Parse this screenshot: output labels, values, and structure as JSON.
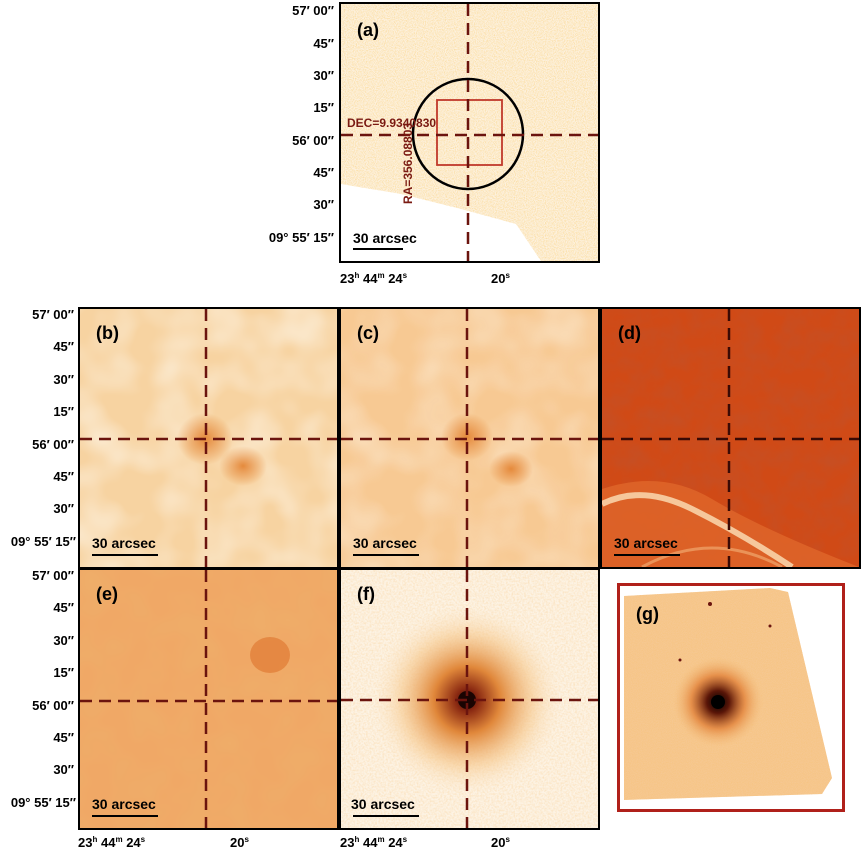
{
  "y_ticks": [
    "57′ 00″",
    "45″",
    "30″",
    "15″",
    "56′ 00″",
    "45″",
    "30″",
    "09° 55′ 15″"
  ],
  "x_ticks": {
    "ra_major": "23",
    "ra_h": "h",
    "ra_min": "44",
    "ra_m": "m",
    "ra_sec": "24",
    "ra_s": "s",
    "ra_minor": "20",
    "ra_minor_s": "s"
  },
  "panels": {
    "a": {
      "label": "(a)",
      "scale": "30 arcsec"
    },
    "b": {
      "label": "(b)",
      "scale": "30 arcsec"
    },
    "c": {
      "label": "(c)",
      "scale": "30 arcsec"
    },
    "d": {
      "label": "(d)",
      "scale": "30 arcsec"
    },
    "e": {
      "label": "(e)",
      "scale": "30 arcsec"
    },
    "f": {
      "label": "(f)",
      "scale": "30 arcsec"
    },
    "g": {
      "label": "(g)"
    }
  },
  "annotations": {
    "dec": "DEC=9.9340830",
    "ra": "RA=356.08803"
  },
  "colors": {
    "crosshair": "#6b140e",
    "box": "#c0392b",
    "panel_g_border": "#b0201a"
  }
}
